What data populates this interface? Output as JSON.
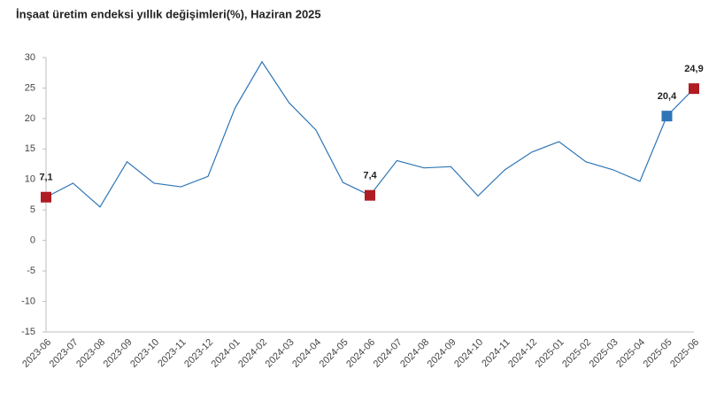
{
  "chart_data": {
    "type": "line",
    "title": "İnşaat üretim endeksi yıllık değişimleri(%), Haziran 2025",
    "categories": [
      "2023-06",
      "2023-07",
      "2023-08",
      "2023-09",
      "2023-10",
      "2023-11",
      "2023-12",
      "2024-01",
      "2024-02",
      "2024-03",
      "2024-04",
      "2024-05",
      "2024-06",
      "2024-07",
      "2024-08",
      "2024-09",
      "2024-10",
      "2024-11",
      "2024-12",
      "2025-01",
      "2025-02",
      "2025-03",
      "2025-04",
      "2025-05",
      "2025-06"
    ],
    "series": [
      {
        "color": "#2e75b6",
        "values": [
          7.1,
          9.4,
          5.5,
          12.9,
          9.4,
          8.8,
          10.5,
          21.7,
          29.3,
          22.6,
          18.1,
          9.5,
          7.4,
          13.1,
          11.9,
          12.1,
          7.3,
          11.6,
          14.5,
          16.2,
          12.9,
          11.6,
          9.7,
          20.4,
          24.9
        ],
        "value_labels": [
          "7,1",
          null,
          null,
          null,
          null,
          null,
          null,
          null,
          null,
          null,
          null,
          null,
          "7,4",
          null,
          null,
          null,
          null,
          null,
          null,
          null,
          null,
          null,
          null,
          "20,4",
          "24,9"
        ],
        "marker_colors": [
          "#b01c24",
          null,
          null,
          null,
          null,
          null,
          null,
          null,
          null,
          null,
          null,
          null,
          "#b01c24",
          null,
          null,
          null,
          null,
          null,
          null,
          null,
          null,
          null,
          null,
          "#2e75b6",
          "#b01c24"
        ]
      }
    ],
    "ylim": [
      -15,
      30
    ],
    "yticks": [
      -15,
      -10,
      -5,
      0,
      5,
      10,
      15,
      20,
      25,
      30
    ],
    "grid": false
  }
}
